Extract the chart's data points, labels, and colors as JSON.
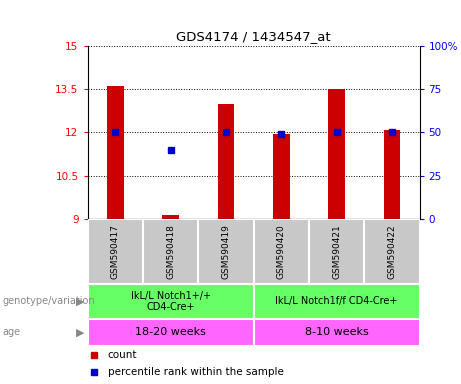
{
  "title": "GDS4174 / 1434547_at",
  "samples": [
    "GSM590417",
    "GSM590418",
    "GSM590419",
    "GSM590420",
    "GSM590421",
    "GSM590422"
  ],
  "count_values": [
    13.6,
    9.15,
    13.0,
    11.95,
    13.5,
    12.1
  ],
  "percentile_values": [
    50,
    40,
    50,
    49,
    50,
    50
  ],
  "ylim_left": [
    9,
    15
  ],
  "ylim_right": [
    0,
    100
  ],
  "yticks_left": [
    9,
    10.5,
    12,
    13.5,
    15
  ],
  "yticks_right": [
    0,
    25,
    50,
    75,
    100
  ],
  "ytick_labels_left": [
    "9",
    "10.5",
    "12",
    "13.5",
    "15"
  ],
  "ytick_labels_right": [
    "0",
    "25",
    "50",
    "75",
    "100%"
  ],
  "bar_color": "#cc0000",
  "dot_color": "#0000cc",
  "bar_bottom": 9,
  "genotype_groups": [
    {
      "label": "IkL/L Notch1+/+\nCD4-Cre+",
      "start": 0,
      "end": 3,
      "color": "#66ff66"
    },
    {
      "label": "IkL/L Notch1f/f CD4-Cre+",
      "start": 3,
      "end": 6,
      "color": "#66ff66"
    }
  ],
  "age_groups": [
    {
      "label": "18-20 weeks",
      "start": 0,
      "end": 3,
      "color": "#ff66ff"
    },
    {
      "label": "8-10 weeks",
      "start": 3,
      "end": 6,
      "color": "#ff66ff"
    }
  ],
  "sample_box_color": "#c8c8c8",
  "legend_count_label": "count",
  "legend_pct_label": "percentile rank within the sample",
  "genotype_label": "genotype/variation",
  "age_label": "age",
  "bar_width": 0.3
}
